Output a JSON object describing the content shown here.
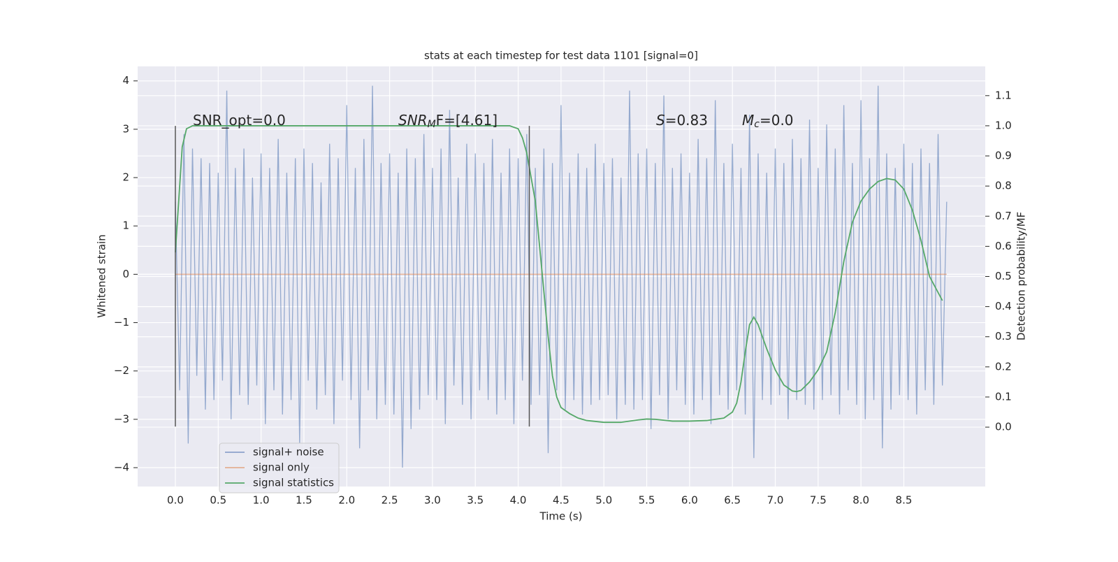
{
  "chart_data": {
    "type": "line",
    "title": "stats at each timestep for test data 1101 [signal=0]",
    "x_label": "Time (s)",
    "y_label": "Whitened strain",
    "y2_label": "Detection probability/MF",
    "xlim": [
      -0.44,
      9.45
    ],
    "ylim": [
      -4.39,
      4.3
    ],
    "y2lim": [
      -0.197,
      1.197
    ],
    "grid": true,
    "legend": "lower left",
    "xticks": [
      {
        "value": 0,
        "label": "0.0"
      },
      {
        "value": 0.5,
        "label": "0.5"
      },
      {
        "value": 1,
        "label": "1.0"
      },
      {
        "value": 1.5,
        "label": "1.5"
      },
      {
        "value": 2,
        "label": "2.0"
      },
      {
        "value": 2.5,
        "label": "2.5"
      },
      {
        "value": 3,
        "label": "3.0"
      },
      {
        "value": 3.5,
        "label": "3.5"
      },
      {
        "value": 4,
        "label": "4.0"
      },
      {
        "value": 4.5,
        "label": "4.5"
      },
      {
        "value": 5,
        "label": "5.0"
      },
      {
        "value": 5.5,
        "label": "5.5"
      },
      {
        "value": 6,
        "label": "6.0"
      },
      {
        "value": 6.5,
        "label": "6.5"
      },
      {
        "value": 7,
        "label": "7.0"
      },
      {
        "value": 7.5,
        "label": "7.5"
      },
      {
        "value": 8,
        "label": "8.0"
      },
      {
        "value": 8.5,
        "label": "8.5"
      }
    ],
    "yticks": [
      {
        "value": -4,
        "label": "−4"
      },
      {
        "value": -3,
        "label": "−3"
      },
      {
        "value": -2,
        "label": "−2"
      },
      {
        "value": -1,
        "label": "−1"
      },
      0,
      1,
      2,
      3,
      4
    ],
    "y2ticks": [
      {
        "value": 0,
        "label": "0.0"
      },
      {
        "value": 0.1,
        "label": "0.1"
      },
      {
        "value": 0.2,
        "label": "0.2"
      },
      {
        "value": 0.3,
        "label": "0.3"
      },
      {
        "value": 0.4,
        "label": "0.4"
      },
      {
        "value": 0.5,
        "label": "0.5"
      },
      {
        "value": 0.6,
        "label": "0.6"
      },
      {
        "value": 0.7,
        "label": "0.7"
      },
      {
        "value": 0.8,
        "label": "0.8"
      },
      {
        "value": 0.9,
        "label": "0.9"
      },
      {
        "value": 1,
        "label": "1.0"
      },
      {
        "value": 1.1,
        "label": "1.1"
      }
    ],
    "vlines": [
      {
        "x": 0,
        "ymin": -3.15,
        "ymax": 3.07
      },
      {
        "x": 4.13,
        "ymin": -3.15,
        "ymax": 3.07
      }
    ],
    "annotations": [
      {
        "text": "SNR_opt=0.0"
      },
      {
        "italic": "SNR",
        "sub": "M",
        "text": "F=[4.61]"
      },
      {
        "italic": "S",
        "text": "=0.83"
      },
      {
        "italic": "M",
        "sub": "c",
        "text": "=0.0"
      }
    ],
    "series": [
      {
        "name": "signal+ noise",
        "color": "#4c72b0",
        "axis": "y",
        "x": [
          0,
          0.05,
          0.1,
          0.15,
          0.2,
          0.25,
          0.3,
          0.35,
          0.4,
          0.45,
          0.5,
          0.55,
          0.6,
          0.65,
          0.7,
          0.75,
          0.8,
          0.85,
          0.9,
          0.95,
          1,
          1.05,
          1.1,
          1.15,
          1.2,
          1.25,
          1.3,
          1.35,
          1.4,
          1.45,
          1.5,
          1.55,
          1.6,
          1.65,
          1.7,
          1.75,
          1.8,
          1.85,
          1.9,
          1.95,
          2,
          2.05,
          2.1,
          2.15,
          2.2,
          2.25,
          2.3,
          2.35,
          2.4,
          2.45,
          2.5,
          2.55,
          2.6,
          2.65,
          2.7,
          2.75,
          2.8,
          2.85,
          2.9,
          2.95,
          3,
          3.05,
          3.1,
          3.15,
          3.2,
          3.25,
          3.3,
          3.35,
          3.4,
          3.45,
          3.5,
          3.55,
          3.6,
          3.65,
          3.7,
          3.75,
          3.8,
          3.85,
          3.9,
          3.95,
          4,
          4.05,
          4.1,
          4.15,
          4.2,
          4.25,
          4.3,
          4.35,
          4.4,
          4.45,
          4.5,
          4.55,
          4.6,
          4.65,
          4.7,
          4.75,
          4.8,
          4.85,
          4.9,
          4.95,
          5,
          5.05,
          5.1,
          5.15,
          5.2,
          5.25,
          5.3,
          5.35,
          5.4,
          5.45,
          5.5,
          5.55,
          5.6,
          5.65,
          5.7,
          5.75,
          5.8,
          5.85,
          5.9,
          5.95,
          6,
          6.05,
          6.1,
          6.15,
          6.2,
          6.25,
          6.3,
          6.35,
          6.4,
          6.45,
          6.5,
          6.55,
          6.6,
          6.65,
          6.7,
          6.75,
          6.8,
          6.85,
          6.9,
          6.95,
          7,
          7.05,
          7.1,
          7.15,
          7.2,
          7.25,
          7.3,
          7.35,
          7.4,
          7.45,
          7.5,
          7.55,
          7.6,
          7.65,
          7.7,
          7.75,
          7.8,
          7.85,
          7.9,
          7.95,
          8,
          8.05,
          8.1,
          8.15,
          8.2,
          8.25,
          8.3,
          8.35,
          8.4,
          8.45,
          8.5,
          8.55,
          8.6,
          8.65,
          8.7,
          8.75,
          8.8,
          8.85,
          8.9,
          8.95,
          9
        ],
        "values": [
          1.5,
          -2.4,
          2.9,
          -3.5,
          2.6,
          -2.1,
          2.4,
          -2.8,
          2.3,
          -2.6,
          2.1,
          -2.2,
          3.8,
          -3.0,
          2.2,
          -2.5,
          2.6,
          -2.7,
          2.0,
          -2.3,
          2.5,
          -3.1,
          2.2,
          -2.4,
          2.8,
          -2.9,
          2.1,
          -2.6,
          2.4,
          -3.5,
          2.6,
          -2.2,
          2.3,
          -2.8,
          1.9,
          -2.5,
          2.7,
          -3.1,
          2.4,
          -2.2,
          3.5,
          -2.6,
          2.2,
          -3.6,
          2.8,
          -2.4,
          3.9,
          -3.0,
          2.3,
          -2.7,
          2.5,
          -2.9,
          2.1,
          -4.0,
          2.6,
          -3.2,
          2.4,
          -2.8,
          2.9,
          -2.5,
          2.2,
          -2.6,
          2.6,
          -3.1,
          3.4,
          -2.3,
          2.0,
          -2.7,
          2.7,
          -3.0,
          2.5,
          -2.4,
          2.3,
          -2.6,
          2.8,
          -2.9,
          2.1,
          -2.6,
          2.6,
          -3.1,
          2.4,
          -2.2,
          2.9,
          -2.7,
          2.2,
          -2.5,
          2.6,
          -3.7,
          2.3,
          -2.4,
          3.5,
          -2.8,
          2.1,
          -2.6,
          2.5,
          -2.9,
          2.2,
          -2.7,
          2.7,
          -2.6,
          2.3,
          -2.5,
          2.4,
          -3.0,
          2.0,
          -2.7,
          3.8,
          -2.8,
          2.5,
          -2.6,
          2.6,
          -3.2,
          2.3,
          -2.5,
          3.7,
          -3.0,
          2.2,
          -2.4,
          2.5,
          -2.7,
          2.1,
          -2.9,
          2.8,
          -2.6,
          2.4,
          -3.1,
          3.6,
          -2.5,
          2.3,
          -2.8,
          2.7,
          -2.4,
          2.2,
          -2.9,
          3.3,
          -3.8,
          2.5,
          -2.6,
          2.1,
          -2.7,
          2.6,
          -2.5,
          2.3,
          -3.0,
          2.8,
          -2.6,
          2.4,
          -2.7,
          3.2,
          -2.8,
          2.2,
          -2.6,
          3.1,
          -2.5,
          2.6,
          -2.9,
          3.5,
          -2.4,
          2.3,
          -2.7,
          3.6,
          -3.0,
          2.4,
          -2.6,
          3.9,
          -3.6,
          2.5,
          -2.8,
          2.2,
          -2.5,
          2.7,
          -2.6,
          2.3,
          -2.9,
          2.6,
          -2.4,
          2.3,
          -2.7,
          2.9,
          -2.3,
          1.5
        ]
      },
      {
        "name": "signal only",
        "color": "#dd8452",
        "axis": "y",
        "x": [
          0,
          9
        ],
        "values": [
          0,
          0
        ]
      },
      {
        "name": "signal statistics",
        "color": "#55a868",
        "axis": "y2",
        "x": [
          0,
          0.08,
          0.13,
          0.2,
          3.7,
          3.9,
          4.0,
          4.05,
          4.1,
          4.2,
          4.3,
          4.35,
          4.4,
          4.45,
          4.5,
          4.6,
          4.7,
          4.8,
          5.0,
          5.2,
          5.4,
          5.5,
          5.6,
          5.8,
          6.0,
          6.2,
          6.4,
          6.5,
          6.55,
          6.6,
          6.65,
          6.7,
          6.75,
          6.8,
          6.9,
          7.0,
          7.1,
          7.2,
          7.25,
          7.3,
          7.4,
          7.5,
          7.6,
          7.7,
          7.8,
          7.9,
          8.0,
          8.1,
          8.2,
          8.3,
          8.4,
          8.5,
          8.6,
          8.7,
          8.8,
          8.95
        ],
        "values": [
          0.58,
          0.93,
          0.99,
          1.0,
          1.0,
          1.0,
          0.99,
          0.96,
          0.91,
          0.75,
          0.45,
          0.3,
          0.17,
          0.1,
          0.065,
          0.045,
          0.03,
          0.022,
          0.016,
          0.016,
          0.024,
          0.027,
          0.026,
          0.02,
          0.02,
          0.022,
          0.03,
          0.05,
          0.08,
          0.15,
          0.25,
          0.34,
          0.365,
          0.34,
          0.26,
          0.19,
          0.14,
          0.12,
          0.118,
          0.122,
          0.15,
          0.19,
          0.25,
          0.38,
          0.55,
          0.68,
          0.75,
          0.79,
          0.815,
          0.825,
          0.82,
          0.79,
          0.72,
          0.62,
          0.5,
          0.42
        ]
      }
    ]
  }
}
